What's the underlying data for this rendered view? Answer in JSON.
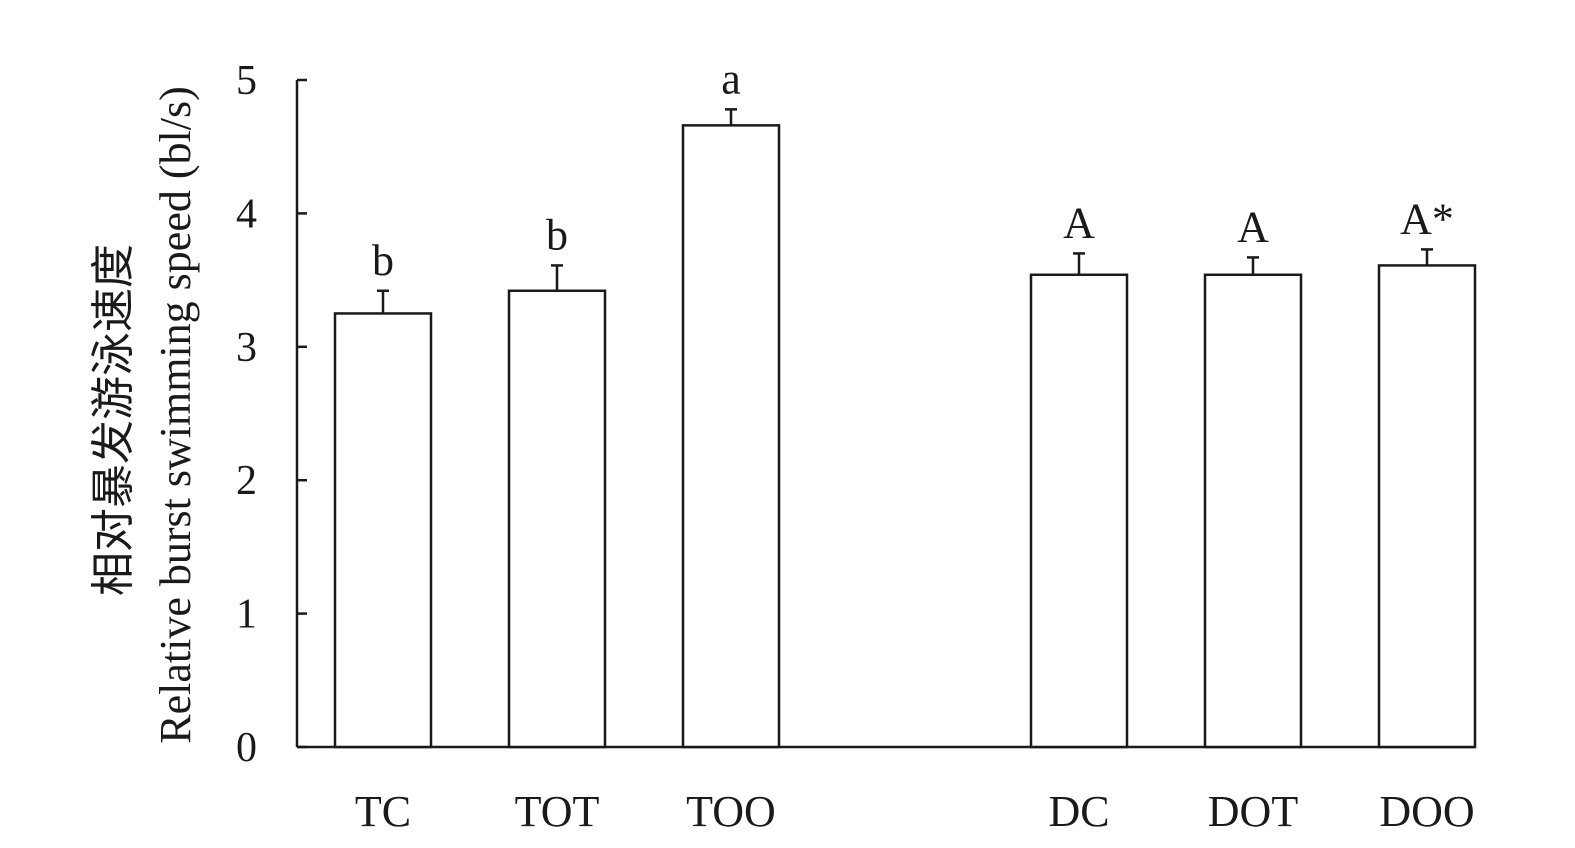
{
  "chart_data": {
    "type": "bar",
    "title": "",
    "xlabel": "",
    "ylabel_cn": "相对暴发游泳速度",
    "ylabel": "Relative burst swimming speed (bl/s)",
    "ylim": [
      0,
      5
    ],
    "yticks": [
      "0",
      "1",
      "2",
      "3",
      "4",
      "5"
    ],
    "grid": false,
    "categories": [
      "TC",
      "TOT",
      "TOO",
      "DC",
      "DOT",
      "DOO"
    ],
    "values": [
      3.25,
      3.42,
      4.66,
      3.54,
      3.54,
      3.61
    ],
    "errors": [
      0.17,
      0.19,
      0.12,
      0.16,
      0.13,
      0.12
    ],
    "significance_labels": [
      "b",
      "b",
      "a",
      "A",
      "A",
      "A*"
    ],
    "bar_color": "#ffffff",
    "edge_color": "#1a1a1a"
  }
}
